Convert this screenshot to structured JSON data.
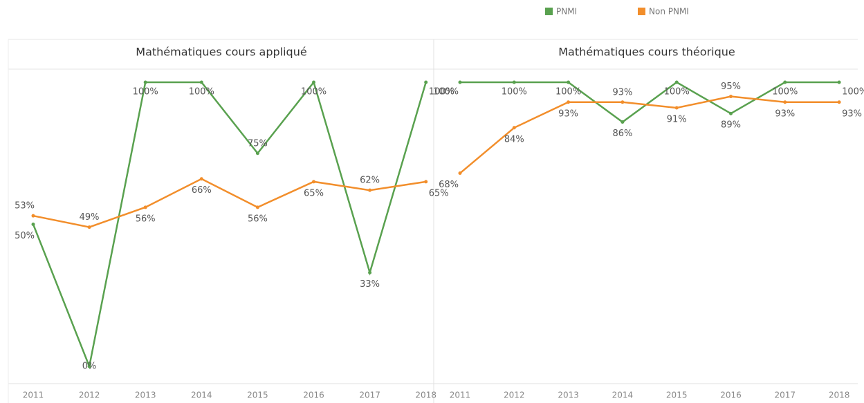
{
  "chart_data": [
    {
      "type": "line",
      "title": "Mathématiques cours appliqué",
      "categories": [
        "2011",
        "2012",
        "2013",
        "2014",
        "2015",
        "2016",
        "2017",
        "2018"
      ],
      "series": [
        {
          "name": "PNMI",
          "color": "#59a14f",
          "values": [
            50,
            0,
            100,
            100,
            75,
            100,
            33,
            100
          ],
          "value_labels": [
            "50%",
            "0%",
            "100%",
            "100%",
            "75%",
            "100%",
            "33%",
            "100%"
          ]
        },
        {
          "name": "Non PNMI",
          "color": "#f28e2b",
          "values": [
            53,
            49,
            56,
            66,
            56,
            65,
            62,
            65
          ],
          "value_labels": [
            "53%",
            "49%",
            "56%",
            "66%",
            "56%",
            "65%",
            "62%",
            "65%"
          ]
        }
      ]
    },
    {
      "type": "line",
      "title": "Mathématiques cours théorique",
      "categories": [
        "2011",
        "2012",
        "2013",
        "2014",
        "2015",
        "2016",
        "2017",
        "2018"
      ],
      "series": [
        {
          "name": "PNMI",
          "color": "#59a14f",
          "values": [
            100,
            100,
            100,
            86,
            100,
            89,
            100,
            100
          ],
          "value_labels": [
            "100%",
            "100%",
            "100%",
            "86%",
            "100%",
            "89%",
            "100%",
            "100%"
          ]
        },
        {
          "name": "Non PNMI",
          "color": "#f28e2b",
          "values": [
            68,
            84,
            93,
            93,
            91,
            95,
            93,
            93
          ],
          "value_labels": [
            "68%",
            "84%",
            "93%",
            "93%",
            "91%",
            "95%",
            "93%",
            "93%"
          ]
        }
      ]
    }
  ]
}
